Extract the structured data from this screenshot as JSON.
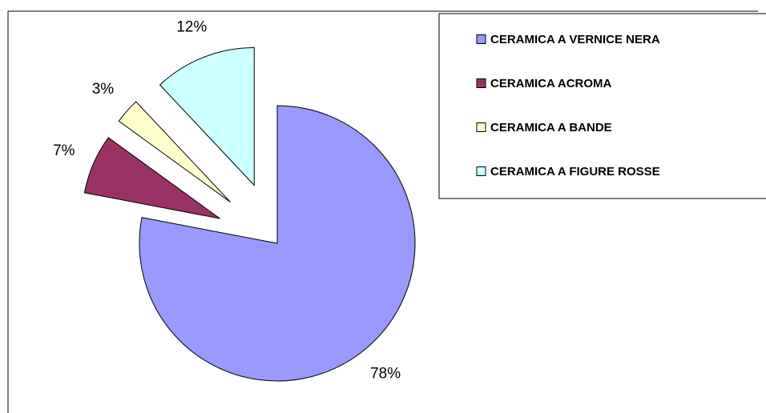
{
  "chart_data": {
    "type": "pie",
    "categories": [
      "CERAMICA A VERNICE NERA",
      "CERAMICA ACROMA",
      "CERAMICA A BANDE",
      "CERAMICA A FIGURE ROSSE"
    ],
    "values": [
      78,
      7,
      3,
      12
    ],
    "value_labels": [
      "78%",
      "7%",
      "3%",
      "12%"
    ],
    "colors": [
      "#9999ff",
      "#993366",
      "#ffffcc",
      "#ccffff"
    ],
    "legend": "right"
  }
}
